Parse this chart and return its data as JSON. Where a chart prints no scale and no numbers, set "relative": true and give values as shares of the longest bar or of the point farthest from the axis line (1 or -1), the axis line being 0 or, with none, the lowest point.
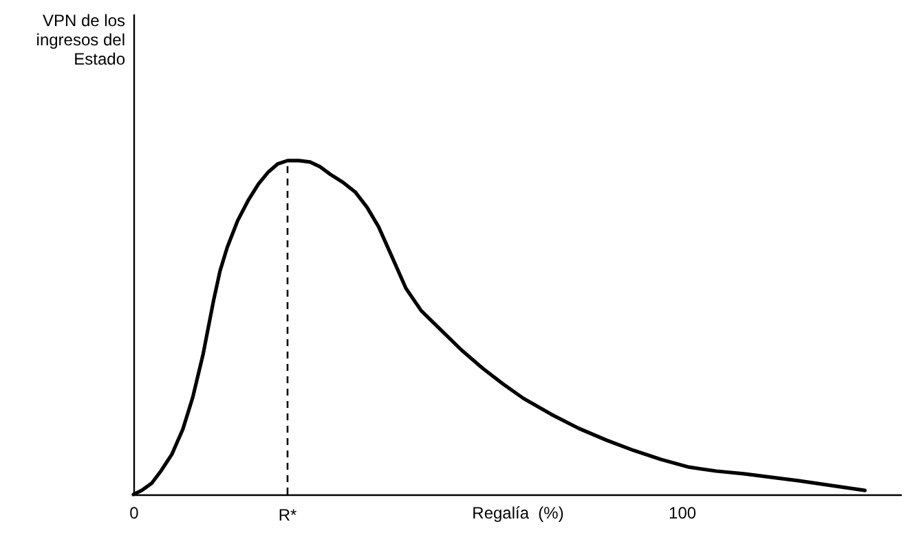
{
  "chart_data": {
    "type": "line",
    "relative": true,
    "xlabel": "Regalía  (%)",
    "annotations": [
      "VPN de los ingresos del Estado"
    ],
    "xlim": [
      0,
      140
    ],
    "xticks": [
      0,
      100
    ],
    "series": [
      {
        "color": "#000000",
        "x": [
          0,
          1.5,
          3.3,
          5.0,
          7.0,
          9.0,
          10.8,
          12.7,
          14.6,
          15.8,
          17.1,
          19.0,
          20.9,
          22.8,
          24.6,
          26.3,
          28.1,
          30.2,
          32.2,
          34.0,
          35.9,
          38.2,
          40.5,
          42.6,
          44.7,
          47.2,
          49.7,
          52.5,
          56.0,
          59.8,
          63.6,
          67.4,
          71.1,
          76.2,
          81.2,
          86.2,
          91.2,
          96.2,
          101.3,
          106.3,
          111.3,
          121.4,
          133.4
        ],
        "values": [
          0,
          0.012,
          0.033,
          0.07,
          0.12,
          0.195,
          0.29,
          0.42,
          0.58,
          0.67,
          0.74,
          0.82,
          0.88,
          0.93,
          0.966,
          0.99,
          1,
          1.0,
          0.996,
          0.982,
          0.959,
          0.935,
          0.905,
          0.86,
          0.802,
          0.71,
          0.617,
          0.55,
          0.494,
          0.433,
          0.379,
          0.331,
          0.288,
          0.24,
          0.198,
          0.163,
          0.132,
          0.105,
          0.082,
          0.07,
          0.062,
          0.041,
          0.012
        ]
      }
    ],
    "ref_lines": [
      {
        "axis": "x",
        "value": 28.1,
        "label": "R*",
        "line_style": "dashed",
        "color": "#000000"
      }
    ]
  }
}
